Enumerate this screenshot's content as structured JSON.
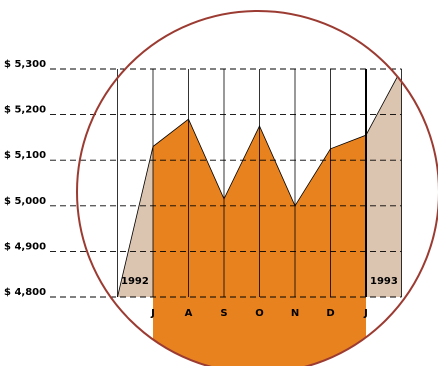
{
  "chart_data": {
    "type": "area",
    "categories": [
      null,
      "J",
      "A",
      "S",
      "O",
      "N",
      "D",
      "J",
      null
    ],
    "values": [
      4800,
      5130,
      5190,
      5015,
      5175,
      5000,
      5125,
      5155,
      5300
    ],
    "ylim": [
      4800,
      5300
    ],
    "yticks": [
      {
        "value": 4800,
        "label": "$ 4,800"
      },
      {
        "value": 4900,
        "label": "$ 4,900"
      },
      {
        "value": 5000,
        "label": "$ 5,000"
      },
      {
        "value": 5100,
        "label": "$ 5,100"
      },
      {
        "value": 5200,
        "label": "$ 5,200"
      },
      {
        "value": 5300,
        "label": "$ 5,300"
      }
    ],
    "annotations": [
      "1992",
      "1993"
    ],
    "color": "#e8821f",
    "outer_color": "#dcc5b0",
    "grid": true
  }
}
